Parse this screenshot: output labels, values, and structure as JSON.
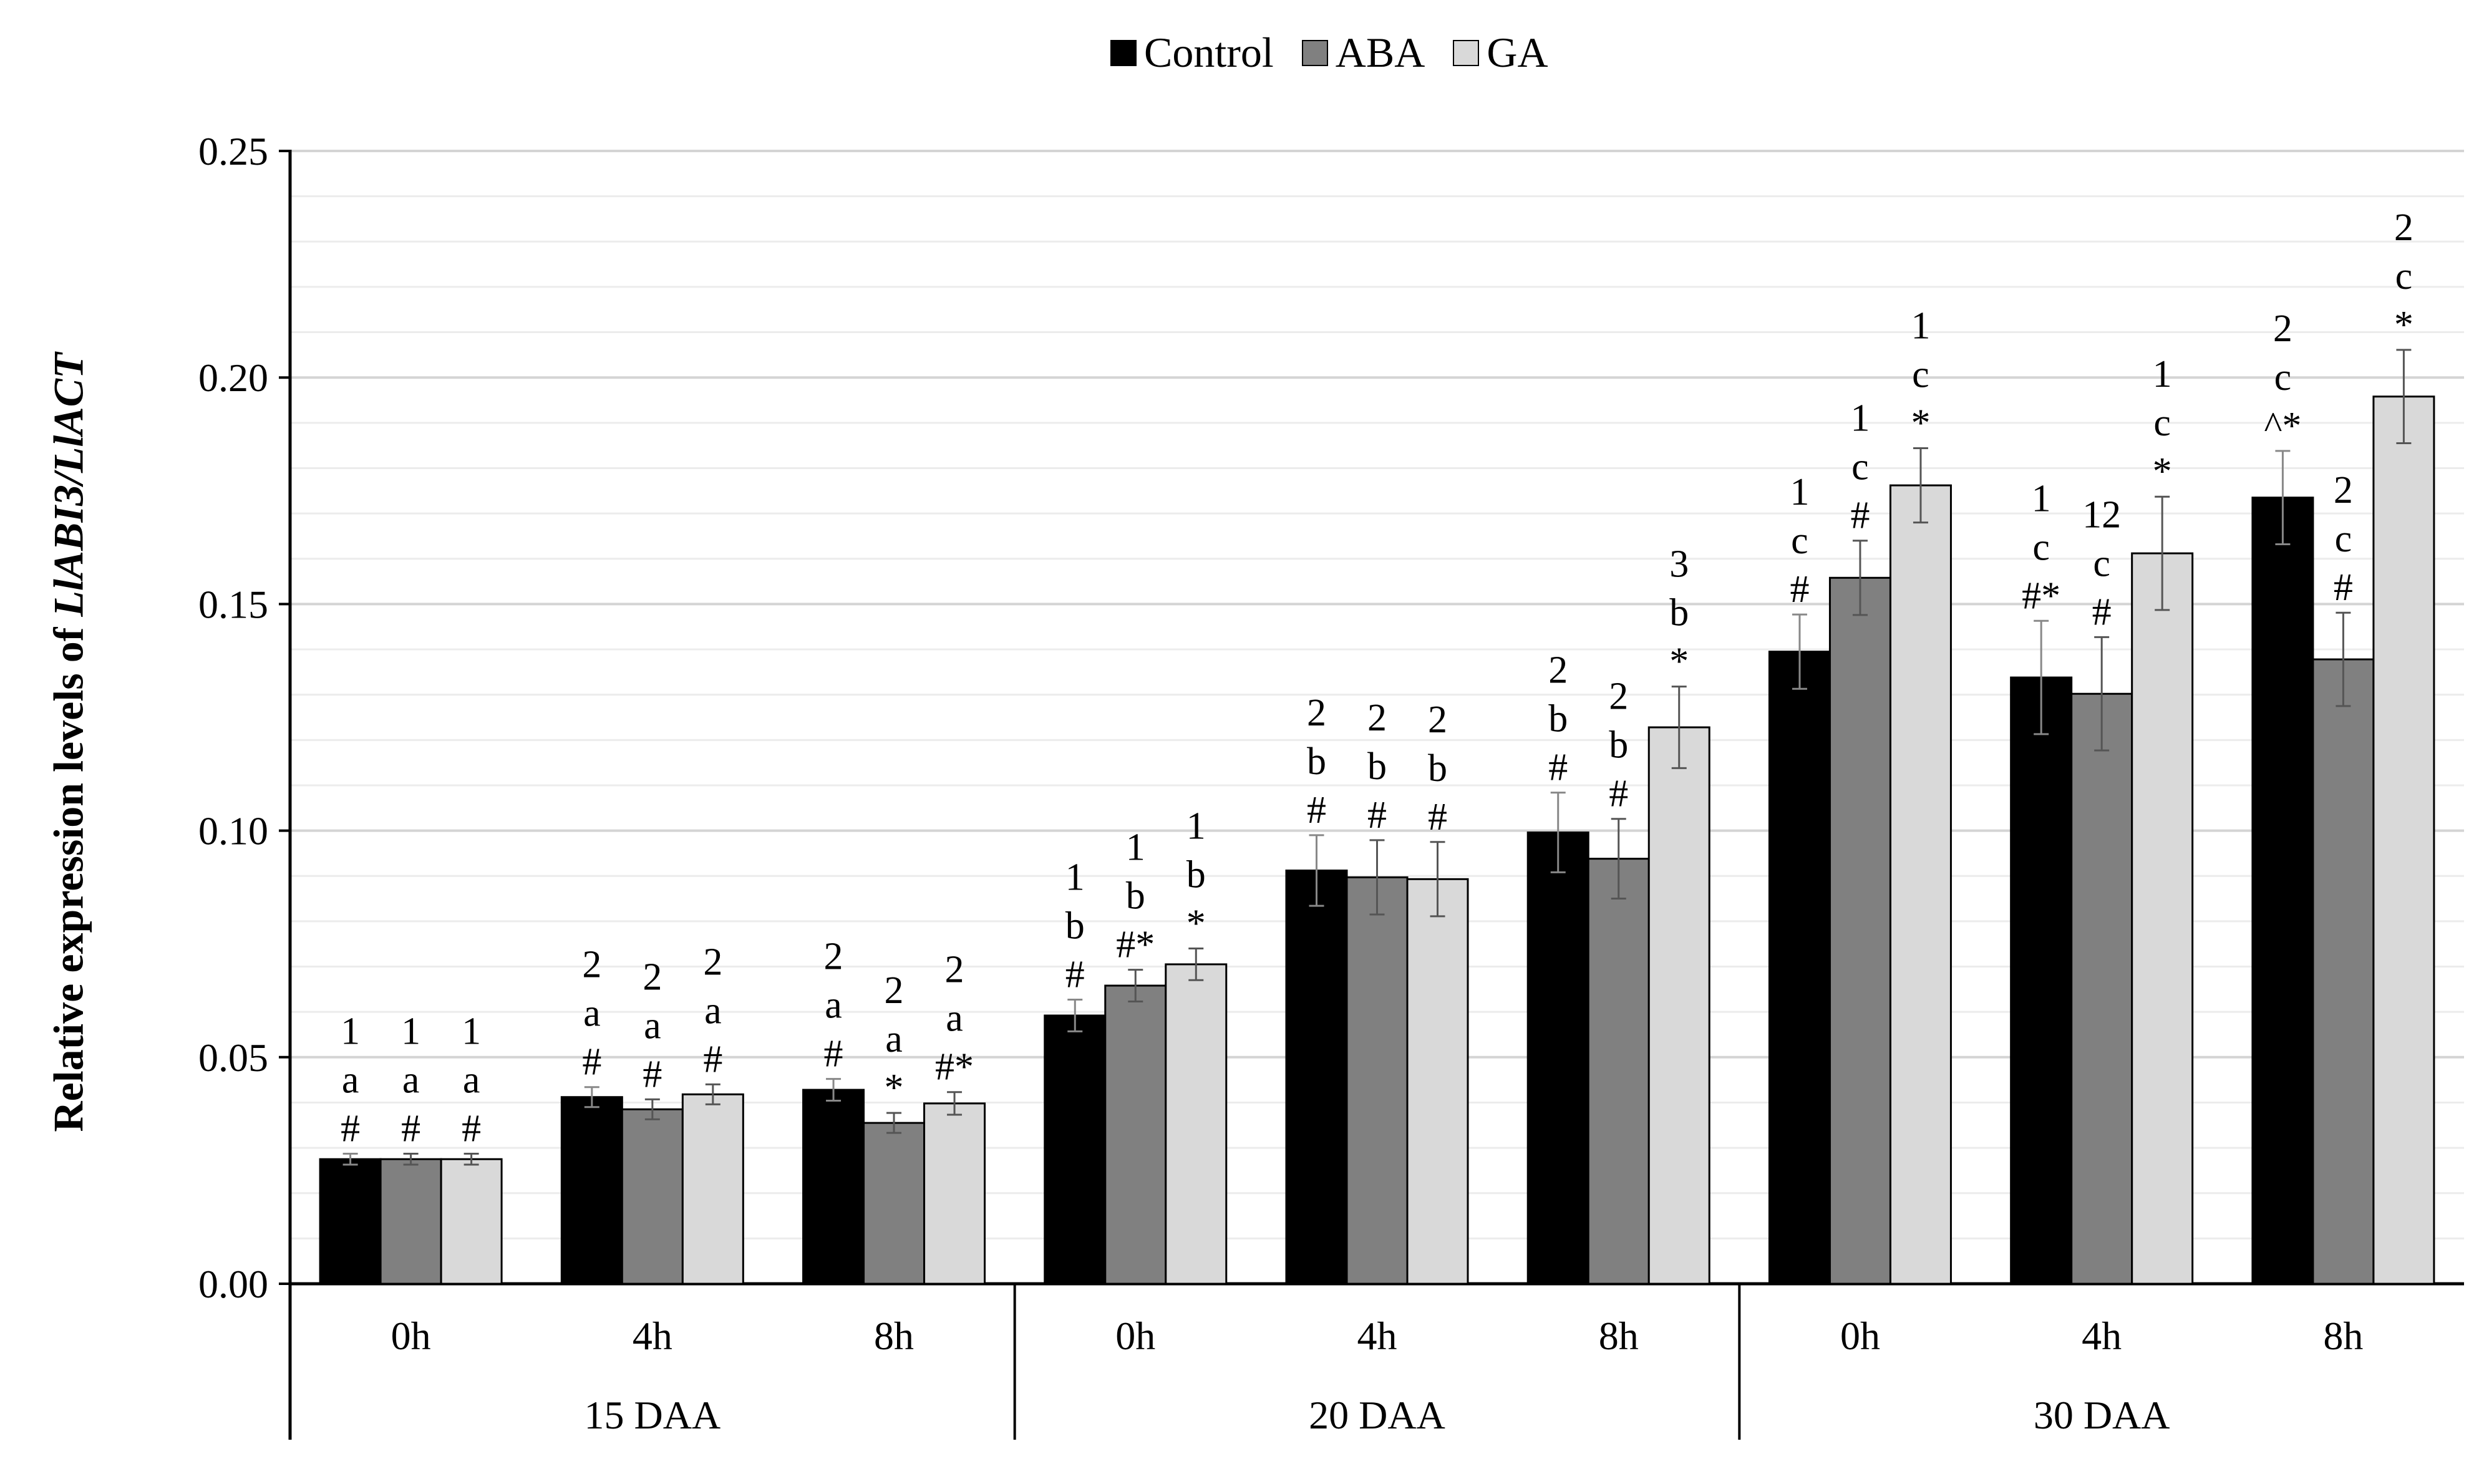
{
  "chart_data": {
    "type": "bar",
    "ylabel_prefix": "Relative expression levels of ",
    "ylabel_gene": "LlABI3/LlACT",
    "ylim": [
      0,
      0.25
    ],
    "yticks": [
      "0.00",
      "0.05",
      "0.10",
      "0.15",
      "0.20",
      "0.25"
    ],
    "ytick_values": [
      0,
      0.05,
      0.1,
      0.15,
      0.2,
      0.25
    ],
    "groups": [
      "15 DAA",
      "20 DAA",
      "30 DAA"
    ],
    "categories": [
      "0h",
      "4h",
      "8h",
      "0h",
      "4h",
      "8h",
      "0h",
      "4h",
      "8h"
    ],
    "series": [
      {
        "name": "Control",
        "color": "#000000",
        "values": [
          0.0275,
          0.0412,
          0.0428,
          0.0592,
          0.0912,
          0.0996,
          0.1395,
          0.1338,
          0.1735
        ],
        "errors": [
          0.0012,
          0.0022,
          0.0024,
          0.0035,
          0.0078,
          0.0088,
          0.0082,
          0.0125,
          0.0103
        ],
        "labels": [
          [
            "1",
            "a",
            "#"
          ],
          [
            "2",
            "a",
            "#"
          ],
          [
            "2",
            "a",
            "#"
          ],
          [
            "1",
            "b",
            "#"
          ],
          [
            "2",
            "b",
            "#"
          ],
          [
            "2",
            "b",
            "#"
          ],
          [
            "1",
            "c",
            "#"
          ],
          [
            "1",
            "c",
            "#*"
          ],
          [
            "2",
            "c",
            "^*"
          ]
        ]
      },
      {
        "name": "ABA",
        "color": "#808080",
        "values": [
          0.0275,
          0.0385,
          0.0355,
          0.0658,
          0.0897,
          0.0938,
          0.1558,
          0.1302,
          0.1378
        ],
        "errors": [
          0.0012,
          0.0022,
          0.0022,
          0.0035,
          0.0082,
          0.0088,
          0.0082,
          0.0125,
          0.0103
        ],
        "labels": [
          [
            "1",
            "a",
            "#"
          ],
          [
            "2",
            "a",
            "#"
          ],
          [
            "2",
            "a",
            "*"
          ],
          [
            "1",
            "b",
            "#*"
          ],
          [
            "2",
            "b",
            "#"
          ],
          [
            "2",
            "b",
            "#"
          ],
          [
            "1",
            "c",
            "#"
          ],
          [
            "12",
            "c",
            "#"
          ],
          [
            "2",
            "c",
            "#"
          ]
        ]
      },
      {
        "name": "GA",
        "color": "#d9d9d9",
        "values": [
          0.0275,
          0.0418,
          0.0398,
          0.0705,
          0.0893,
          0.1228,
          0.1762,
          0.1612,
          0.1958
        ],
        "errors": [
          0.0012,
          0.0022,
          0.0025,
          0.0035,
          0.0082,
          0.009,
          0.0082,
          0.0125,
          0.0103
        ],
        "labels": [
          [
            "1",
            "a",
            "#"
          ],
          [
            "2",
            "a",
            "#"
          ],
          [
            "2",
            "a",
            "#*"
          ],
          [
            "1",
            "b",
            "*"
          ],
          [
            "2",
            "b",
            "#"
          ],
          [
            "3",
            "b",
            "*"
          ],
          [
            "1",
            "c",
            "*"
          ],
          [
            "1",
            "c",
            "*"
          ],
          [
            "2",
            "c",
            "*"
          ]
        ]
      }
    ],
    "legend_position": "top-center",
    "grid": true
  }
}
